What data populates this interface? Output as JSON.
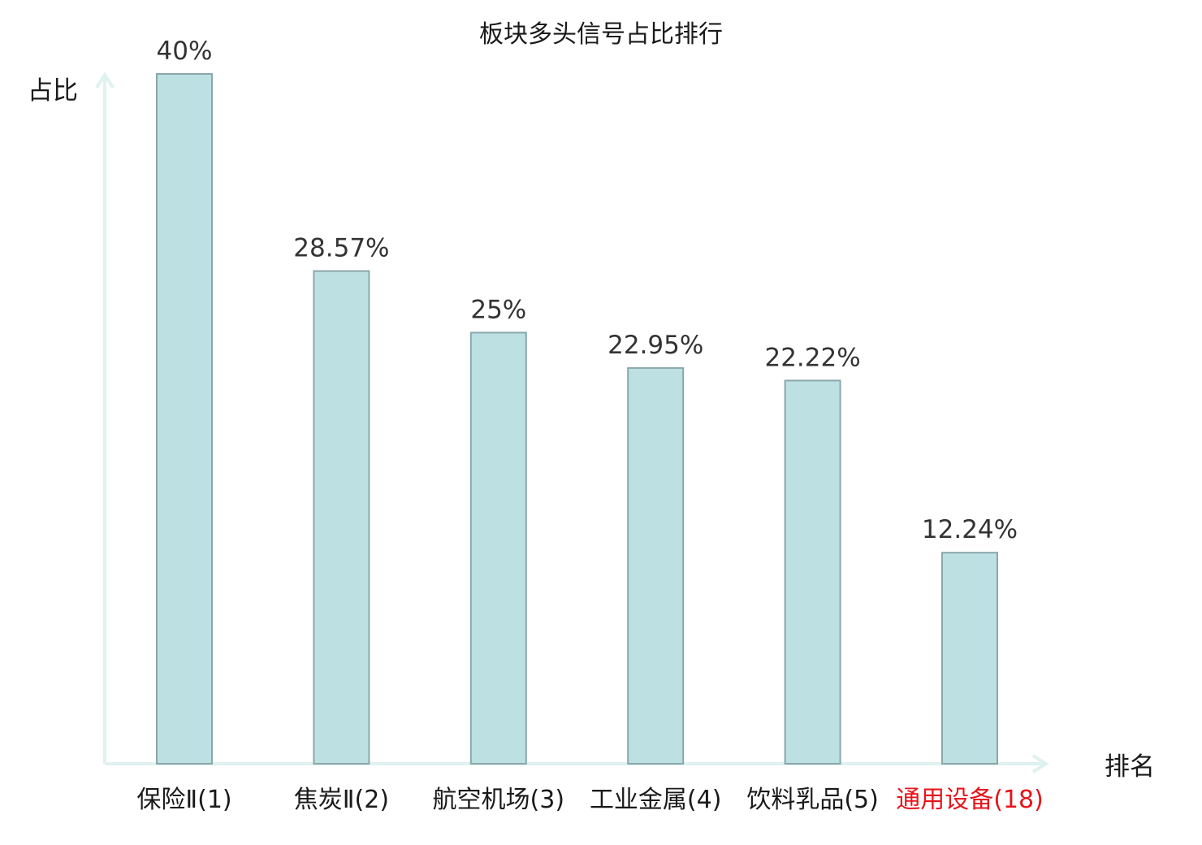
{
  "chart_data": {
    "type": "bar",
    "title": "板块多头信号占比排行",
    "ylabel": "占比",
    "xlabel": "排名",
    "ylim": [
      0,
      40
    ],
    "grid": false,
    "categories": [
      "保险Ⅱ(1)",
      "焦炭Ⅱ(2)",
      "航空机场(3)",
      "工业金属(4)",
      "饮料乳品(5)",
      "通用设备(18)"
    ],
    "values": [
      40,
      28.57,
      25,
      22.95,
      22.22,
      12.24
    ],
    "value_labels": [
      "40%",
      "28.57%",
      "25%",
      "22.95%",
      "22.22%",
      "12.24%"
    ],
    "highlight_index": 5
  },
  "colors": {
    "bar_fill": "#bde0e3",
    "bar_stroke": "#8aa7ab",
    "axis": "#dff2ef",
    "highlight_text": "#e8141b",
    "text": "#1a1a1a"
  }
}
